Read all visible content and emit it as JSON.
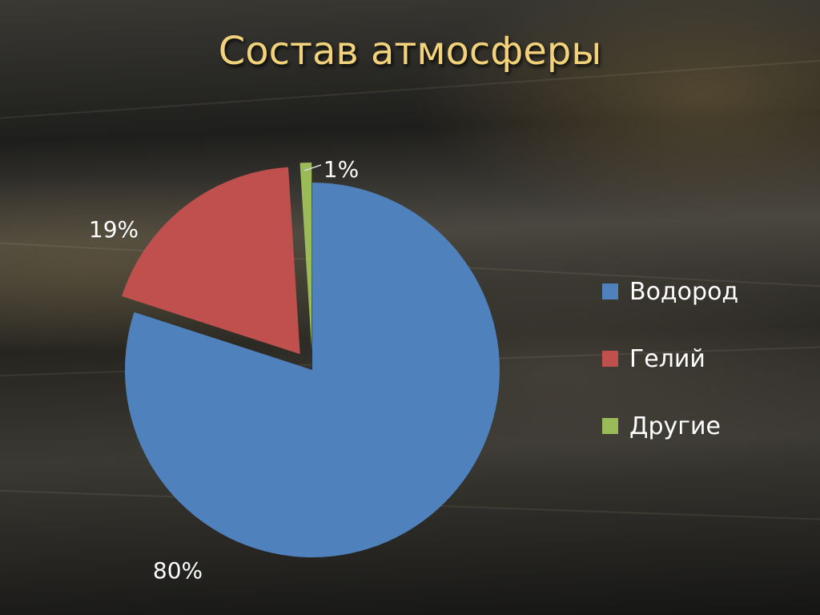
{
  "slide": {
    "title": "Состав атмосферы"
  },
  "chart_data": {
    "type": "pie",
    "title": "Состав атмосферы",
    "categories": [
      "Водород",
      "Гелий",
      "Другие"
    ],
    "values": [
      80,
      19,
      1
    ],
    "data_labels": [
      "80%",
      "19%",
      "1%"
    ],
    "colors": [
      "#4f81bd",
      "#c0504d",
      "#9bbb59"
    ],
    "exploded": [
      false,
      true,
      true
    ],
    "legend_position": "right"
  },
  "legend": {
    "items": [
      {
        "label": "Водород",
        "color": "#4f81bd"
      },
      {
        "label": "Гелий",
        "color": "#c0504d"
      },
      {
        "label": "Другие",
        "color": "#9bbb59"
      }
    ]
  }
}
